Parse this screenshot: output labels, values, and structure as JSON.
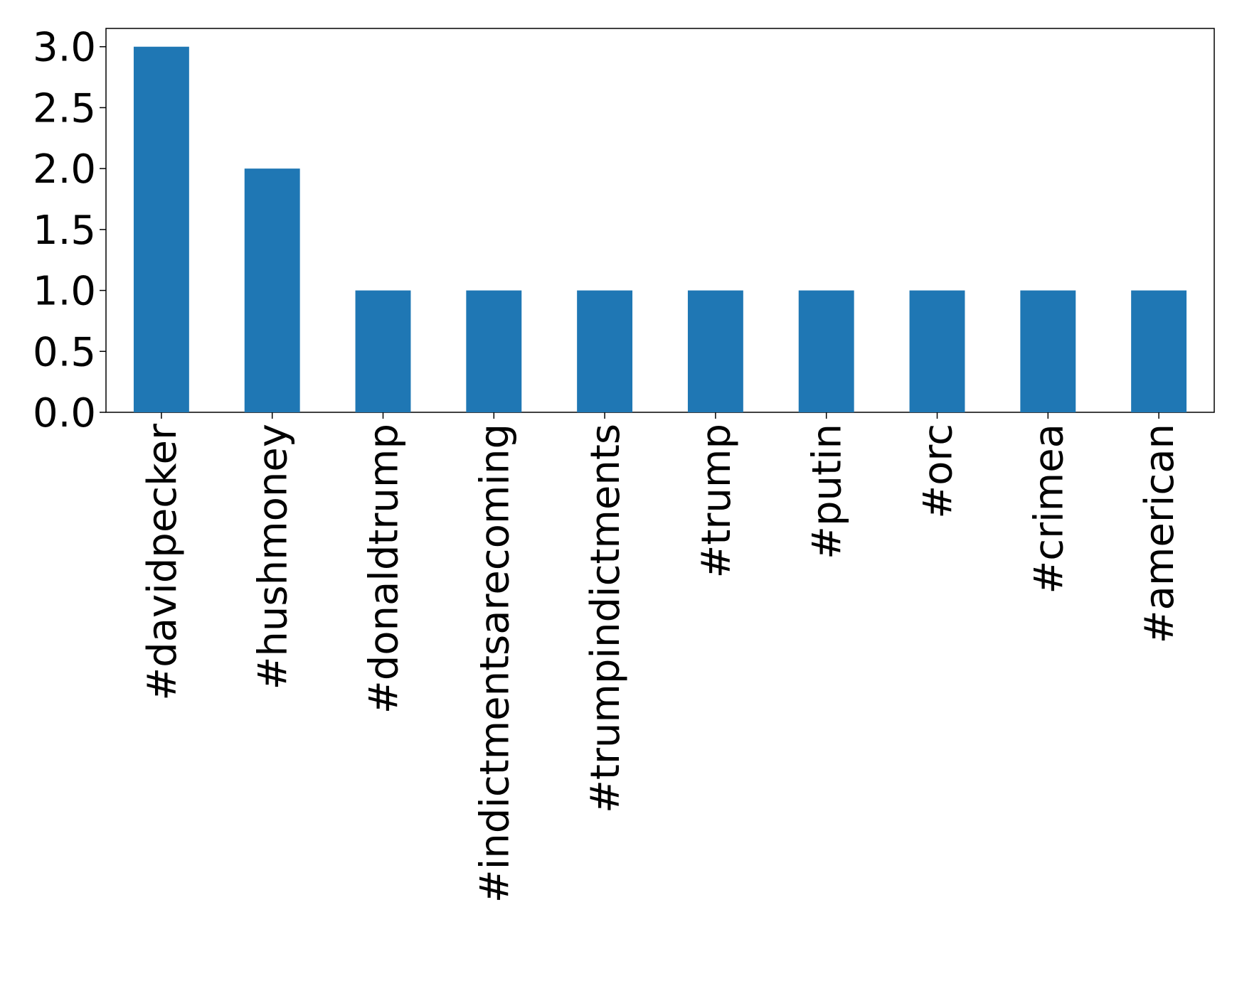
{
  "chart_data": {
    "type": "bar",
    "categories": [
      "#davidpecker",
      "#hushmoney",
      "#donaldtrump",
      "#indictmentsarecoming",
      "#trumpindictments",
      "#trump",
      "#putin",
      "#orc",
      "#crimea",
      "#american"
    ],
    "values": [
      3,
      2,
      1,
      1,
      1,
      1,
      1,
      1,
      1,
      1
    ],
    "color": "#1f77b4",
    "ylim": [
      0,
      3.15
    ],
    "yticks": [
      {
        "value": 0,
        "label": "0.0"
      },
      0.5,
      {
        "value": 1,
        "label": "1.0"
      },
      1.5,
      {
        "value": 2,
        "label": "2.0"
      },
      2.5,
      {
        "value": 3,
        "label": "3.0"
      }
    ],
    "grid": false
  }
}
